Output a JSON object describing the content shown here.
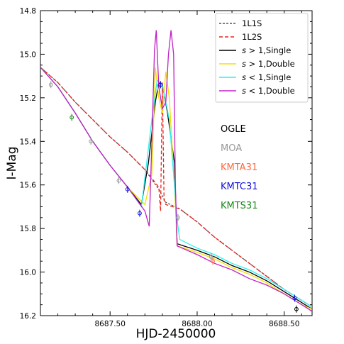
{
  "chart_data": {
    "type": "line",
    "xlabel": "HJD-2450000",
    "ylabel": "I-Mag",
    "xlim": [
      8687.1,
      8688.66
    ],
    "ylim": [
      16.2,
      14.8
    ],
    "y_inverted": true,
    "grid": false,
    "legend_placement": "top-right",
    "x_ticks": [
      {
        "value": 8687.5,
        "label": "8687.50"
      },
      {
        "value": 8688.0,
        "label": "8688.00"
      },
      {
        "value": 8688.5,
        "label": "8688.50"
      }
    ],
    "y_ticks": [
      {
        "value": 14.8,
        "label": "14.8"
      },
      {
        "value": 15.0,
        "label": "15.0"
      },
      {
        "value": 15.2,
        "label": "15.2"
      },
      {
        "value": 15.4,
        "label": "15.4"
      },
      {
        "value": 15.6,
        "label": "15.6"
      },
      {
        "value": 15.8,
        "label": "15.8"
      },
      {
        "value": 16.0,
        "label": "16.0"
      },
      {
        "value": 16.2,
        "label": "16.2"
      }
    ],
    "series": [
      {
        "name": "1L1S",
        "color": "#555555",
        "dash": "3,2",
        "points": [
          [
            8687.1,
            15.06
          ],
          [
            8687.2,
            15.13
          ],
          [
            8687.3,
            15.22
          ],
          [
            8687.4,
            15.3
          ],
          [
            8687.5,
            15.38
          ],
          [
            8687.6,
            15.45
          ],
          [
            8687.7,
            15.53
          ],
          [
            8687.78,
            15.62
          ],
          [
            8687.82,
            15.68
          ],
          [
            8687.9,
            15.71
          ],
          [
            8688.0,
            15.77
          ],
          [
            8688.1,
            15.84
          ],
          [
            8688.2,
            15.9
          ],
          [
            8688.3,
            15.96
          ],
          [
            8688.4,
            16.02
          ],
          [
            8688.5,
            16.08
          ],
          [
            8688.6,
            16.13
          ],
          [
            8688.66,
            16.16
          ]
        ]
      },
      {
        "name": "1L2S",
        "color": "#e8231c",
        "dash": "5,3",
        "points": [
          [
            8687.1,
            15.06
          ],
          [
            8687.2,
            15.13
          ],
          [
            8687.3,
            15.22
          ],
          [
            8687.4,
            15.3
          ],
          [
            8687.5,
            15.38
          ],
          [
            8687.6,
            15.45
          ],
          [
            8687.7,
            15.53
          ],
          [
            8687.78,
            15.61
          ],
          [
            8687.79,
            15.72
          ],
          [
            8687.8,
            15.13
          ],
          [
            8687.81,
            15.67
          ],
          [
            8687.82,
            15.69
          ],
          [
            8687.9,
            15.71
          ],
          [
            8688.0,
            15.77
          ],
          [
            8688.1,
            15.84
          ],
          [
            8688.2,
            15.9
          ],
          [
            8688.3,
            15.96
          ],
          [
            8688.4,
            16.02
          ],
          [
            8688.5,
            16.08
          ],
          [
            8688.6,
            16.13
          ],
          [
            8688.66,
            16.16
          ]
        ]
      },
      {
        "name": "s > 1,Single",
        "label_math": true,
        "color": "#000000",
        "dash": "",
        "points": [
          [
            8687.1,
            15.06
          ],
          [
            8687.2,
            15.15
          ],
          [
            8687.3,
            15.27
          ],
          [
            8687.4,
            15.4
          ],
          [
            8687.5,
            15.51
          ],
          [
            8687.6,
            15.61
          ],
          [
            8687.68,
            15.69
          ],
          [
            8687.72,
            15.5
          ],
          [
            8687.76,
            15.22
          ],
          [
            8687.78,
            15.13
          ],
          [
            8687.8,
            15.14
          ],
          [
            8687.83,
            15.27
          ],
          [
            8687.87,
            15.5
          ],
          [
            8687.885,
            15.87
          ],
          [
            8688.0,
            15.9
          ],
          [
            8688.1,
            15.93
          ],
          [
            8688.2,
            15.97
          ],
          [
            8688.3,
            16.0
          ],
          [
            8688.4,
            16.04
          ],
          [
            8688.5,
            16.09
          ],
          [
            8688.6,
            16.14
          ],
          [
            8688.66,
            16.17
          ]
        ]
      },
      {
        "name": "s > 1,Double",
        "label_math": true,
        "color": "#f2e000",
        "dash": "",
        "points": [
          [
            8687.1,
            15.06
          ],
          [
            8687.2,
            15.15
          ],
          [
            8687.3,
            15.27
          ],
          [
            8687.4,
            15.4
          ],
          [
            8687.5,
            15.51
          ],
          [
            8687.6,
            15.61
          ],
          [
            8687.7,
            15.69
          ],
          [
            8687.74,
            15.55
          ],
          [
            8687.76,
            15.06
          ],
          [
            8687.78,
            15.2
          ],
          [
            8687.8,
            15.27
          ],
          [
            8687.82,
            15.08
          ],
          [
            8687.84,
            15.2
          ],
          [
            8687.87,
            15.6
          ],
          [
            8687.885,
            15.88
          ],
          [
            8688.0,
            15.91
          ],
          [
            8688.1,
            15.94
          ],
          [
            8688.2,
            15.98
          ],
          [
            8688.3,
            16.01
          ],
          [
            8688.4,
            16.05
          ],
          [
            8688.5,
            16.1
          ],
          [
            8688.6,
            16.15
          ],
          [
            8688.66,
            16.17
          ]
        ]
      },
      {
        "name": "s < 1,Single",
        "label_math": true,
        "color": "#2ff0f0",
        "dash": "",
        "points": [
          [
            8687.1,
            15.06
          ],
          [
            8687.2,
            15.15
          ],
          [
            8687.3,
            15.27
          ],
          [
            8687.4,
            15.4
          ],
          [
            8687.5,
            15.51
          ],
          [
            8687.6,
            15.61
          ],
          [
            8687.68,
            15.7
          ],
          [
            8687.74,
            15.3
          ],
          [
            8687.77,
            15.12
          ],
          [
            8687.8,
            15.14
          ],
          [
            8687.84,
            15.3
          ],
          [
            8687.885,
            15.76
          ],
          [
            8687.9,
            15.85
          ],
          [
            8688.0,
            15.89
          ],
          [
            8688.1,
            15.92
          ],
          [
            8688.2,
            15.96
          ],
          [
            8688.3,
            15.99
          ],
          [
            8688.4,
            16.03
          ],
          [
            8688.5,
            16.08
          ],
          [
            8688.6,
            16.13
          ],
          [
            8688.66,
            16.16
          ]
        ]
      },
      {
        "name": "s < 1,Double",
        "label_math": true,
        "color": "#c020c8",
        "dash": "",
        "points": [
          [
            8687.1,
            15.06
          ],
          [
            8687.2,
            15.15
          ],
          [
            8687.3,
            15.27
          ],
          [
            8687.4,
            15.4
          ],
          [
            8687.5,
            15.51
          ],
          [
            8687.6,
            15.61
          ],
          [
            8687.7,
            15.72
          ],
          [
            8687.725,
            15.79
          ],
          [
            8687.74,
            15.4
          ],
          [
            8687.755,
            14.98
          ],
          [
            8687.765,
            14.89
          ],
          [
            8687.78,
            15.15
          ],
          [
            8687.8,
            15.25
          ],
          [
            8687.82,
            15.22
          ],
          [
            8687.835,
            15.0
          ],
          [
            8687.85,
            14.89
          ],
          [
            8687.865,
            15.0
          ],
          [
            8687.875,
            15.6
          ],
          [
            8687.885,
            15.88
          ],
          [
            8688.0,
            15.92
          ],
          [
            8688.1,
            15.96
          ],
          [
            8688.2,
            15.99
          ],
          [
            8688.3,
            16.03
          ],
          [
            8688.4,
            16.06
          ],
          [
            8688.5,
            16.1
          ],
          [
            8688.6,
            16.15
          ],
          [
            8688.66,
            16.18
          ]
        ]
      }
    ],
    "observatories": [
      {
        "name": "OGLE",
        "color": "#000000",
        "points": [
          [
            8687.79,
            15.14
          ],
          [
            8688.57,
            16.17
          ]
        ]
      },
      {
        "name": "MOA",
        "color": "#999999",
        "points": [
          [
            8687.16,
            15.14
          ],
          [
            8687.39,
            15.4
          ],
          [
            8687.55,
            15.58
          ],
          [
            8687.89,
            15.75
          ],
          [
            8688.08,
            15.93
          ]
        ]
      },
      {
        "name": "KMTA31",
        "color": "#ff6a40",
        "points": [
          [
            8688.09,
            15.95
          ]
        ]
      },
      {
        "name": "KMTC31",
        "color": "#1010e0",
        "points": [
          [
            8687.6,
            15.62
          ],
          [
            8687.67,
            15.73
          ],
          [
            8687.79,
            15.14
          ],
          [
            8688.56,
            16.12
          ]
        ]
      },
      {
        "name": "KMTS31",
        "color": "#1a8a1a",
        "points": [
          [
            8687.28,
            15.29
          ]
        ]
      }
    ]
  }
}
